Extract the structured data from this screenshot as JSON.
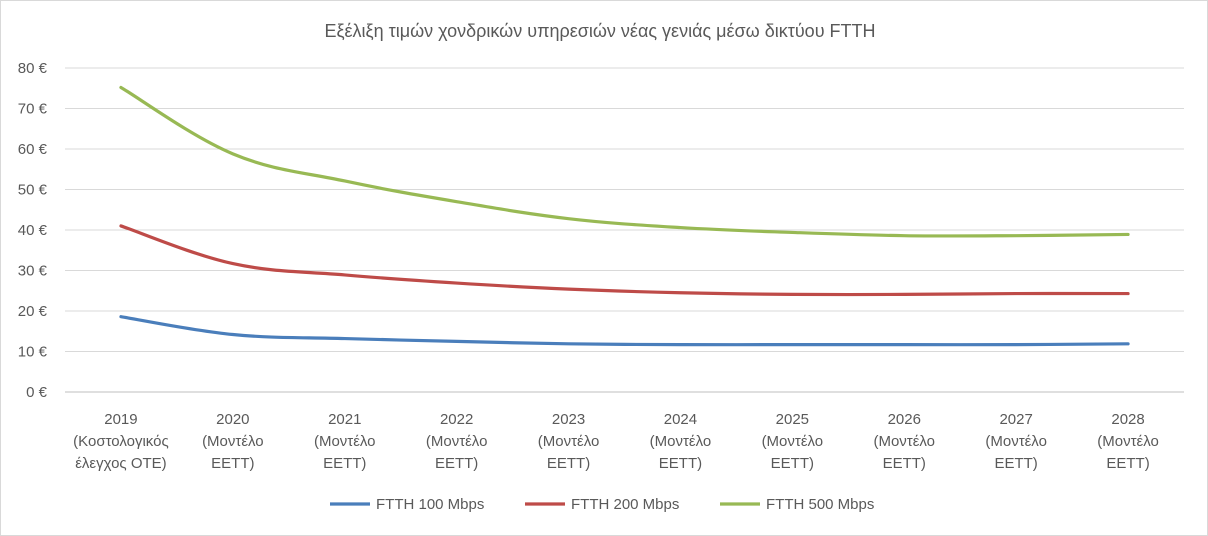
{
  "chart_data": {
    "type": "line",
    "title": "Εξέλιξη τιμών χονδρικών υπηρεσιών νέας γενιάς μέσω δικτύου FTTH",
    "categories": [
      [
        "2019",
        "(Κοστολογικός",
        "έλεγχος ΟΤΕ)"
      ],
      [
        "2020",
        "(Μοντέλο",
        "ΕΕΤΤ)"
      ],
      [
        "2021",
        "(Μοντέλο",
        "ΕΕΤΤ)"
      ],
      [
        "2022",
        "(Μοντέλο",
        "ΕΕΤΤ)"
      ],
      [
        "2023",
        "(Μοντέλο",
        "ΕΕΤΤ)"
      ],
      [
        "2024",
        "(Μοντέλο",
        "ΕΕΤΤ)"
      ],
      [
        "2025",
        "(Μοντέλο",
        "ΕΕΤΤ)"
      ],
      [
        "2026",
        "(Μοντέλο",
        "ΕΕΤΤ)"
      ],
      [
        "2027",
        "(Μοντέλο",
        "ΕΕΤΤ)"
      ],
      [
        "2028",
        "(Μοντέλο",
        "ΕΕΤΤ)"
      ]
    ],
    "y_ticks": [
      "0 €",
      "10 €",
      "20 €",
      "30 €",
      "40 €",
      "50 €",
      "60 €",
      "70 €",
      "80 €"
    ],
    "ylim": [
      0,
      80
    ],
    "grid": true,
    "legend_position": "bottom",
    "series": [
      {
        "name": "FTTH 100 Mbps",
        "color": "#4a7ebb",
        "values": [
          18.6,
          14.2,
          13.2,
          12.5,
          11.9,
          11.7,
          11.7,
          11.7,
          11.7,
          11.9
        ]
      },
      {
        "name": "FTTH 200 Mbps",
        "color": "#be4b48",
        "values": [
          41.0,
          31.7,
          28.9,
          26.9,
          25.4,
          24.5,
          24.1,
          24.1,
          24.3,
          24.3
        ]
      },
      {
        "name": "FTTH 500 Mbps",
        "color": "#98b954",
        "values": [
          75.2,
          58.8,
          52.1,
          47.0,
          42.8,
          40.6,
          39.4,
          38.6,
          38.6,
          38.9
        ]
      }
    ]
  }
}
